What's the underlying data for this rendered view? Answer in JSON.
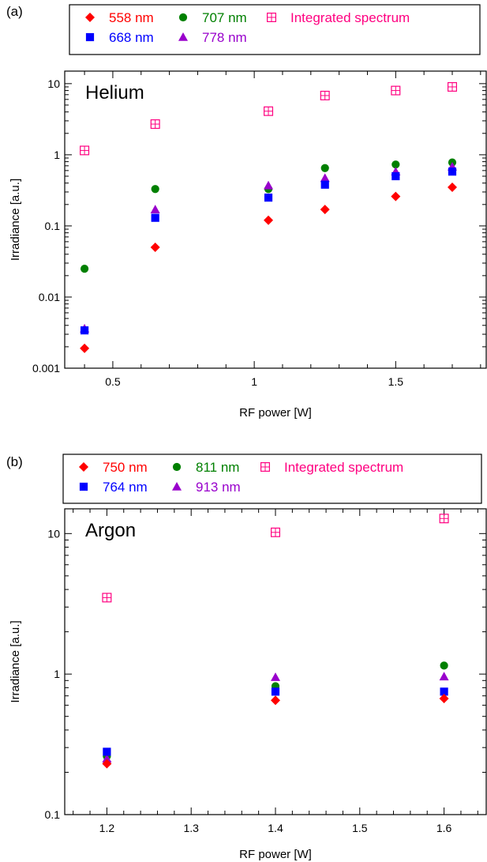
{
  "chart_data": [
    {
      "type": "scatter",
      "panel_label": "(a)",
      "annotation": "Helium",
      "xlabel": "RF power  [W]",
      "ylabel": "Irradiance  [a.u.]",
      "xlim": [
        0.33,
        1.82
      ],
      "ylim": [
        0.001,
        15
      ],
      "yscale": "log",
      "xticks": [
        0.5,
        1,
        1.5
      ],
      "xtick_labels": [
        "0.5",
        "1",
        "1.5"
      ],
      "yticks": [
        0.001,
        0.01,
        0.1,
        1,
        10
      ],
      "ytick_labels": [
        "0.001",
        "0.01",
        "0.1",
        "1",
        "10"
      ],
      "legend_position": "top",
      "series": [
        {
          "name": "558 nm",
          "marker": "diamond",
          "color": "#ff0000",
          "x": [
            0.4,
            0.65,
            1.05,
            1.25,
            1.5,
            1.7
          ],
          "y": [
            0.0019,
            0.05,
            0.12,
            0.17,
            0.26,
            0.35
          ]
        },
        {
          "name": "668 nm",
          "marker": "square",
          "color": "#0000ff",
          "x": [
            0.4,
            0.65,
            1.05,
            1.25,
            1.5,
            1.7
          ],
          "y": [
            0.0034,
            0.13,
            0.25,
            0.38,
            0.5,
            0.58
          ]
        },
        {
          "name": "707 nm",
          "marker": "circle",
          "color": "#008000",
          "x": [
            0.4,
            0.65,
            1.05,
            1.25,
            1.5,
            1.7
          ],
          "y": [
            0.025,
            0.33,
            0.33,
            0.65,
            0.73,
            0.78
          ]
        },
        {
          "name": "778 nm",
          "marker": "triangle",
          "color": "#9900cc",
          "x": [
            0.4,
            0.65,
            1.05,
            1.25,
            1.5,
            1.7
          ],
          "y": [
            0.0036,
            0.17,
            0.37,
            0.47,
            0.58,
            0.68
          ]
        },
        {
          "name": "Integrated spectrum",
          "marker": "boxplus",
          "color": "#ff0080",
          "x": [
            0.4,
            0.65,
            1.05,
            1.25,
            1.5,
            1.7
          ],
          "y": [
            1.15,
            2.7,
            4.1,
            6.8,
            8.0,
            9.0
          ]
        }
      ]
    },
    {
      "type": "scatter",
      "panel_label": "(b)",
      "annotation": "Argon",
      "xlabel": "RF power  [W]",
      "ylabel": "Irradiance  [a.u.]",
      "xlim": [
        1.15,
        1.65
      ],
      "ylim": [
        0.1,
        15
      ],
      "yscale": "log",
      "xticks": [
        1.2,
        1.3,
        1.4,
        1.5,
        1.6
      ],
      "xtick_labels": [
        "1.2",
        "1.3",
        "1.4",
        "1.5",
        "1.6"
      ],
      "yticks": [
        0.1,
        1,
        10
      ],
      "ytick_labels": [
        "0.1",
        "1",
        "10"
      ],
      "legend_position": "top",
      "series": [
        {
          "name": "750 nm",
          "marker": "diamond",
          "color": "#ff0000",
          "x": [
            1.2,
            1.4,
            1.6
          ],
          "y": [
            0.23,
            0.65,
            0.67
          ]
        },
        {
          "name": "764 nm",
          "marker": "square",
          "color": "#0000ff",
          "x": [
            1.2,
            1.4,
            1.6
          ],
          "y": [
            0.28,
            0.75,
            0.75
          ]
        },
        {
          "name": "811 nm",
          "marker": "circle",
          "color": "#008000",
          "x": [
            1.2,
            1.4,
            1.6
          ],
          "y": [
            0.26,
            0.82,
            1.15
          ]
        },
        {
          "name": "913 nm",
          "marker": "triangle",
          "color": "#9900cc",
          "x": [
            1.2,
            1.4,
            1.6
          ],
          "y": [
            0.25,
            0.95,
            0.96
          ]
        },
        {
          "name": "Integrated spectrum",
          "marker": "boxplus",
          "color": "#ff0080",
          "x": [
            1.2,
            1.4,
            1.6
          ],
          "y": [
            3.5,
            10.2,
            12.8
          ]
        }
      ]
    }
  ]
}
